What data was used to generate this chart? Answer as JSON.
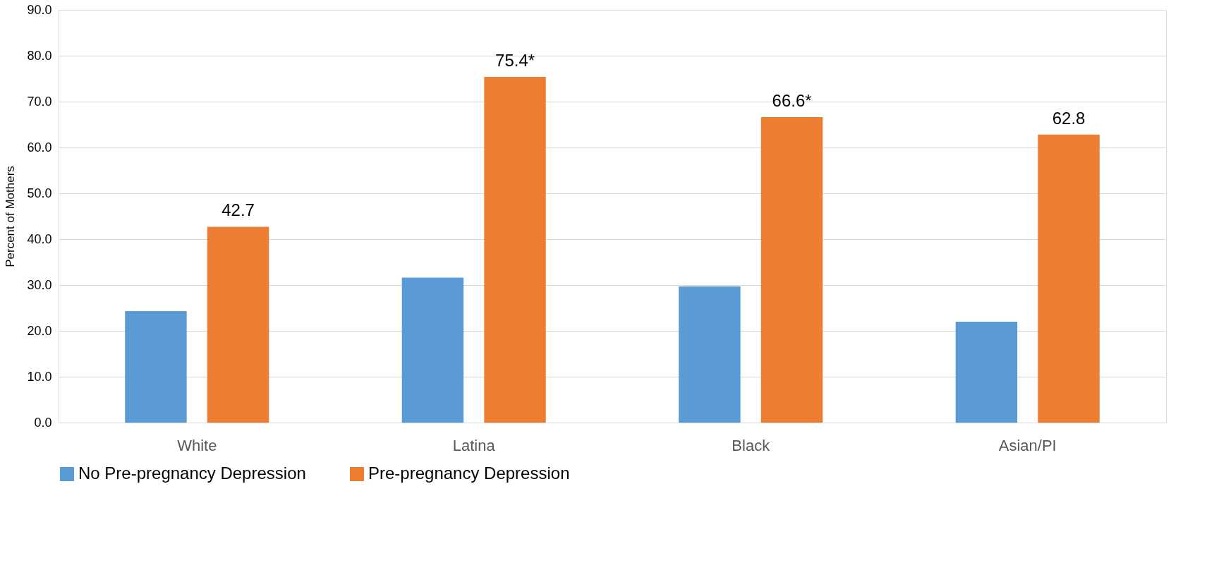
{
  "chart_data": {
    "type": "bar",
    "ylabel": "Percent of Mothers",
    "categories": [
      "White",
      "Latina",
      "Black",
      "Asian/PI"
    ],
    "series": [
      {
        "name": "No Pre-pregnancy Depression",
        "color": "#5b9bd5",
        "values": [
          24.3,
          31.6,
          29.7,
          22.0
        ]
      },
      {
        "name": "Pre-pregnancy Depression",
        "color": "#ed7d31",
        "values": [
          42.7,
          75.4,
          66.6,
          62.8
        ],
        "value_labels": [
          "42.7",
          "75.4*",
          "66.6*",
          "62.8"
        ]
      }
    ],
    "ylim": [
      0,
      90
    ],
    "yticks": [
      {
        "value": 0,
        "label": "0.0"
      },
      {
        "value": 10,
        "label": "10.0"
      },
      {
        "value": 20,
        "label": "20.0"
      },
      {
        "value": 30,
        "label": "30.0"
      },
      {
        "value": 40,
        "label": "40.0"
      },
      {
        "value": 50,
        "label": "50.0"
      },
      {
        "value": 60,
        "label": "60.0"
      },
      {
        "value": 70,
        "label": "70.0"
      },
      {
        "value": 80,
        "label": "80.0"
      },
      {
        "value": 90,
        "label": "90.0"
      }
    ],
    "grid": "y",
    "legend": "bottom"
  }
}
